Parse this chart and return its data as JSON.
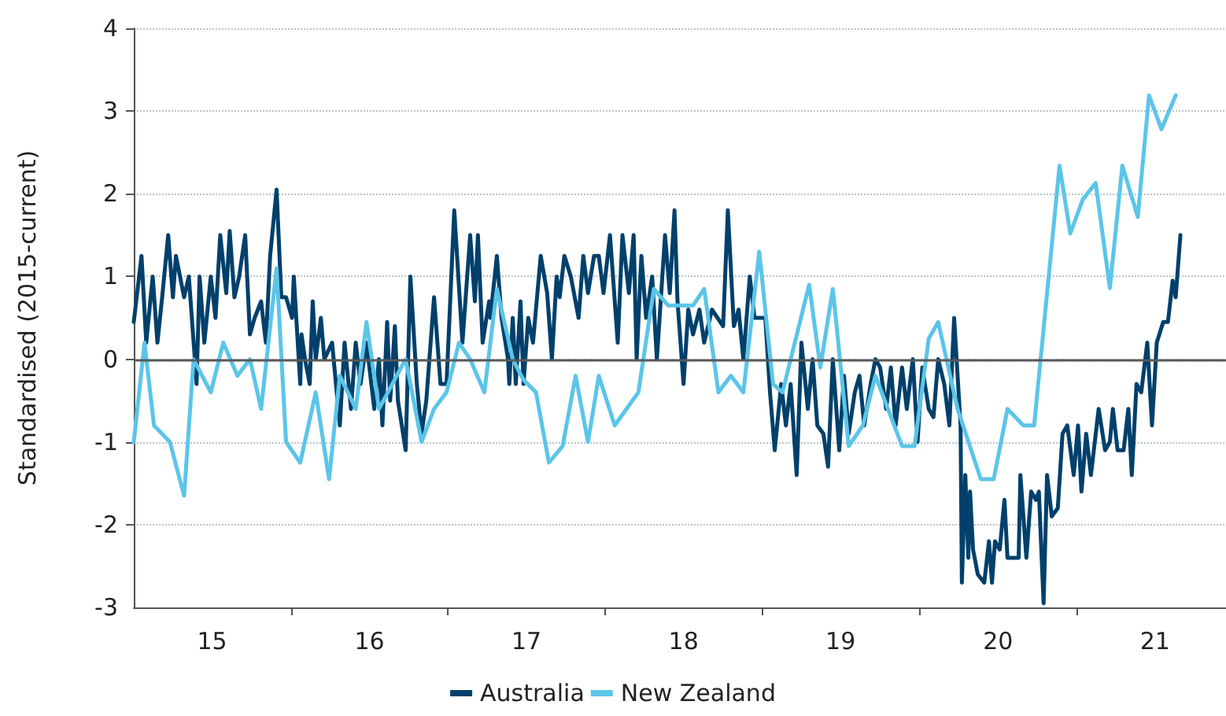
{
  "chart_data": {
    "type": "line",
    "ylabel": "Standardised (2015-current)",
    "xlim": [
      "2015-01-01",
      "2021-12-14"
    ],
    "ylim": [
      -3,
      4
    ],
    "yticks": [
      -3,
      -2,
      -1,
      0,
      1,
      2,
      3,
      4
    ],
    "xticks": [
      {
        "value": "2015-07-02",
        "label": "15"
      },
      {
        "value": "2016-07-02",
        "label": "16"
      },
      {
        "value": "2017-07-02",
        "label": "17"
      },
      {
        "value": "2018-07-02",
        "label": "18"
      },
      {
        "value": "2019-07-02",
        "label": "19"
      },
      {
        "value": "2020-07-02",
        "label": "20"
      },
      {
        "value": "2021-07-02",
        "label": "21"
      }
    ],
    "grid": "y",
    "legend": "bottom",
    "marker": "none",
    "line_style": "solid",
    "ref_lines": [
      {
        "axis": "y",
        "value": 0,
        "color": "#595959"
      }
    ],
    "series": [
      {
        "name": "Australia",
        "color": "#00406b",
        "x": [
          "2015-01-01",
          "2015-01-19",
          "2015-01-30",
          "2015-02-14",
          "2015-02-25",
          "2015-03-08",
          "2015-03-22",
          "2015-04-02",
          "2015-04-09",
          "2015-04-28",
          "2015-05-09",
          "2015-05-23",
          "2015-05-27",
          "2015-06-03",
          "2015-06-14",
          "2015-06-29",
          "2015-07-10",
          "2015-07-21",
          "2015-08-04",
          "2015-08-12",
          "2015-08-23",
          "2015-09-03",
          "2015-09-17",
          "2015-09-28",
          "2015-10-09",
          "2015-10-24",
          "2015-11-04",
          "2015-11-14",
          "2015-11-29",
          "2015-12-10",
          "2015-12-21",
          "2016-01-04",
          "2016-01-08",
          "2016-01-23",
          "2016-01-26",
          "2016-02-03",
          "2016-02-14",
          "2016-02-21",
          "2016-02-28",
          "2016-03-11",
          "2016-03-19",
          "2016-04-06",
          "2016-04-24",
          "2016-05-05",
          "2016-05-20",
          "2016-05-31",
          "2016-06-11",
          "2016-06-25",
          "2016-07-13",
          "2016-07-24",
          "2016-08-01",
          "2016-08-12",
          "2016-08-19",
          "2016-08-30",
          "2016-09-06",
          "2016-09-24",
          "2016-10-05",
          "2016-10-20",
          "2016-10-31",
          "2016-11-11",
          "2016-11-29",
          "2016-12-14",
          "2016-12-28",
          "2017-01-15",
          "2017-02-03",
          "2017-02-21",
          "2017-03-04",
          "2017-03-11",
          "2017-03-22",
          "2017-04-06",
          "2017-04-09",
          "2017-04-24",
          "2017-05-05",
          "2017-05-20",
          "2017-05-23",
          "2017-05-31",
          "2017-06-07",
          "2017-06-18",
          "2017-06-25",
          "2017-07-06",
          "2017-07-17",
          "2017-08-04",
          "2017-08-19",
          "2017-08-30",
          "2017-09-10",
          "2017-09-17",
          "2017-09-28",
          "2017-10-13",
          "2017-10-31",
          "2017-11-11",
          "2017-11-22",
          "2017-12-06",
          "2017-12-17",
          "2017-12-28",
          "2018-01-12",
          "2018-01-19",
          "2018-01-30",
          "2018-02-10",
          "2018-02-25",
          "2018-03-08",
          "2018-03-15",
          "2018-03-26",
          "2018-04-06",
          "2018-04-20",
          "2018-05-01",
          "2018-05-20",
          "2018-05-31",
          "2018-06-11",
          "2018-06-18",
          "2018-07-02",
          "2018-07-13",
          "2018-07-24",
          "2018-08-08",
          "2018-08-19",
          "2018-09-06",
          "2018-10-02",
          "2018-10-13",
          "2018-10-27",
          "2018-11-07",
          "2018-11-18",
          "2018-12-03",
          "2018-12-14",
          "2018-12-25",
          "2019-01-08",
          "2019-01-19",
          "2019-01-30",
          "2019-02-14",
          "2019-02-25",
          "2019-03-08",
          "2019-03-22",
          "2019-04-02",
          "2019-04-17",
          "2019-04-28",
          "2019-05-09",
          "2019-05-23",
          "2019-06-03",
          "2019-06-14",
          "2019-06-29",
          "2019-07-10",
          "2019-07-21",
          "2019-08-04",
          "2019-08-15",
          "2019-08-26",
          "2019-09-10",
          "2019-09-21",
          "2019-10-02",
          "2019-10-16",
          "2019-10-27",
          "2019-11-07",
          "2019-11-22",
          "2019-12-03",
          "2019-12-17",
          "2019-12-28",
          "2020-01-08",
          "2020-01-23",
          "2020-02-03",
          "2020-02-14",
          "2020-02-28",
          "2020-03-11",
          "2020-03-22",
          "2020-04-06",
          "2020-04-09",
          "2020-04-17",
          "2020-04-24",
          "2020-04-28",
          "2020-05-05",
          "2020-05-16",
          "2020-05-31",
          "2020-06-11",
          "2020-06-18",
          "2020-06-25",
          "2020-07-06",
          "2020-07-17",
          "2020-07-24",
          "2020-08-04",
          "2020-08-19",
          "2020-08-23",
          "2020-09-06",
          "2020-09-17",
          "2020-09-28",
          "2020-10-05",
          "2020-10-16",
          "2020-10-24",
          "2020-11-04",
          "2020-11-18",
          "2020-11-29",
          "2020-12-10",
          "2020-12-25",
          "2021-01-04",
          "2021-01-12",
          "2021-01-23",
          "2021-02-03",
          "2021-02-21",
          "2021-03-08",
          "2021-03-19",
          "2021-03-26",
          "2021-04-06",
          "2021-04-20",
          "2021-05-01",
          "2021-05-09",
          "2021-05-20",
          "2021-05-31",
          "2021-06-14",
          "2021-06-25",
          "2021-07-06",
          "2021-07-21",
          "2021-08-01",
          "2021-08-12",
          "2021-08-19",
          "2021-08-30"
        ],
        "values": [
          0.45,
          1.25,
          0.2,
          1.0,
          0.2,
          0.75,
          1.5,
          0.75,
          1.25,
          0.75,
          1.0,
          0.0,
          -0.3,
          1.0,
          0.2,
          1.0,
          0.5,
          1.5,
          0.8,
          1.55,
          0.75,
          1.0,
          1.5,
          0.3,
          0.5,
          0.7,
          0.2,
          1.25,
          2.05,
          0.75,
          0.75,
          0.5,
          1.0,
          -0.3,
          0.3,
          0.0,
          -0.3,
          0.7,
          0.0,
          0.5,
          0.0,
          0.2,
          -0.8,
          0.2,
          -0.6,
          0.2,
          -0.3,
          0.2,
          -0.6,
          0.0,
          -0.8,
          0.45,
          -0.5,
          0.4,
          -0.5,
          -1.1,
          1.0,
          -0.3,
          -0.9,
          -0.5,
          0.75,
          -0.3,
          -0.3,
          1.8,
          0.2,
          1.5,
          0.7,
          1.5,
          0.2,
          0.7,
          0.5,
          1.25,
          0.5,
          0.0,
          -0.3,
          0.5,
          -0.3,
          0.7,
          -0.3,
          0.5,
          0.2,
          1.25,
          0.8,
          0.0,
          1.0,
          0.75,
          1.25,
          1.0,
          0.5,
          1.25,
          0.8,
          1.25,
          1.25,
          0.8,
          1.5,
          1.0,
          0.2,
          1.5,
          0.8,
          1.5,
          0.0,
          1.25,
          0.5,
          1.0,
          0.0,
          1.5,
          0.8,
          1.8,
          0.7,
          -0.3,
          0.6,
          0.3,
          0.6,
          0.2,
          0.6,
          0.4,
          1.8,
          0.4,
          0.6,
          0.0,
          1.0,
          0.5,
          0.5,
          0.5,
          -0.4,
          -1.1,
          -0.3,
          -0.8,
          -0.3,
          -1.4,
          0.2,
          -0.6,
          0.0,
          -0.8,
          -0.9,
          -1.3,
          0.0,
          -1.1,
          -0.2,
          -0.9,
          -0.4,
          -0.2,
          -0.8,
          -0.3,
          0.0,
          -0.1,
          -0.6,
          -0.1,
          -0.8,
          -0.1,
          -0.6,
          0.0,
          -1.0,
          -0.1,
          -0.6,
          -0.7,
          0.0,
          -0.3,
          -0.8,
          0.5,
          -0.8,
          -2.7,
          -1.4,
          -2.4,
          -1.6,
          -2.3,
          -2.6,
          -2.7,
          -2.2,
          -2.7,
          -2.2,
          -2.3,
          -1.7,
          -2.4,
          -2.4,
          -2.4,
          -1.4,
          -2.4,
          -1.6,
          -1.7,
          -1.6,
          -2.95,
          -1.4,
          -1.9,
          -1.8,
          -0.9,
          -0.8,
          -1.4,
          -0.8,
          -1.6,
          -0.9,
          -1.4,
          -0.6,
          -1.1,
          -1.0,
          -0.6,
          -1.1,
          -1.1,
          -0.6,
          -1.4,
          -0.3,
          -0.4,
          0.2,
          -0.8,
          0.2,
          0.45,
          0.45,
          0.95,
          0.75,
          1.5
        ]
      },
      {
        "name": "New Zealand",
        "color": "#5bc5e8",
        "x": [
          "2015-01-01",
          "2015-01-26",
          "2015-02-17",
          "2015-03-26",
          "2015-04-28",
          "2015-05-20",
          "2015-06-29",
          "2015-07-28",
          "2015-08-30",
          "2015-09-28",
          "2015-10-24",
          "2015-11-29",
          "2015-12-21",
          "2016-01-23",
          "2016-02-28",
          "2016-03-30",
          "2016-04-24",
          "2016-05-31",
          "2016-06-25",
          "2016-07-24",
          "2016-09-24",
          "2016-10-31",
          "2016-11-29",
          "2016-12-28",
          "2017-01-26",
          "2017-02-21",
          "2017-03-26",
          "2017-04-24",
          "2017-05-31",
          "2017-06-25",
          "2017-07-24",
          "2017-08-23",
          "2017-09-24",
          "2017-10-24",
          "2017-11-22",
          "2017-12-17",
          "2018-01-23",
          "2018-03-19",
          "2018-04-24",
          "2018-05-27",
          "2018-07-24",
          "2018-08-19",
          "2018-09-21",
          "2018-10-20",
          "2018-11-18",
          "2018-12-25",
          "2019-01-26",
          "2019-02-17",
          "2019-04-20",
          "2019-05-16",
          "2019-06-14",
          "2019-07-21",
          "2019-08-23",
          "2019-09-21",
          "2019-11-22",
          "2019-12-21",
          "2020-01-23",
          "2020-02-14",
          "2020-03-30",
          "2020-05-23",
          "2020-06-22",
          "2020-07-24",
          "2020-08-30",
          "2020-09-24",
          "2020-11-22",
          "2020-12-17",
          "2021-01-15",
          "2021-02-14",
          "2021-03-19",
          "2021-04-17",
          "2021-05-23",
          "2021-06-18",
          "2021-07-17",
          "2021-08-19"
        ],
        "values": [
          -1.0,
          0.2,
          -0.8,
          -1.0,
          -1.65,
          0.0,
          -0.4,
          0.2,
          -0.2,
          0.0,
          -0.6,
          1.1,
          -1.0,
          -1.25,
          -0.4,
          -1.45,
          -0.2,
          -0.6,
          0.45,
          -0.6,
          0.0,
          -1.0,
          -0.6,
          -0.4,
          0.2,
          0.0,
          -0.4,
          0.85,
          0.0,
          -0.25,
          -0.4,
          -1.25,
          -1.05,
          -0.2,
          -1.0,
          -0.2,
          -0.8,
          -0.4,
          0.85,
          0.65,
          0.65,
          0.85,
          -0.4,
          -0.2,
          -0.4,
          1.3,
          -0.3,
          -0.4,
          0.9,
          -0.1,
          0.85,
          -1.05,
          -0.8,
          -0.2,
          -1.05,
          -1.05,
          0.25,
          0.45,
          -0.6,
          -1.45,
          -1.45,
          -0.6,
          -0.8,
          -0.8,
          2.34,
          1.52,
          1.93,
          2.13,
          0.86,
          2.34,
          1.72,
          3.19,
          2.78,
          3.19
        ]
      }
    ]
  }
}
